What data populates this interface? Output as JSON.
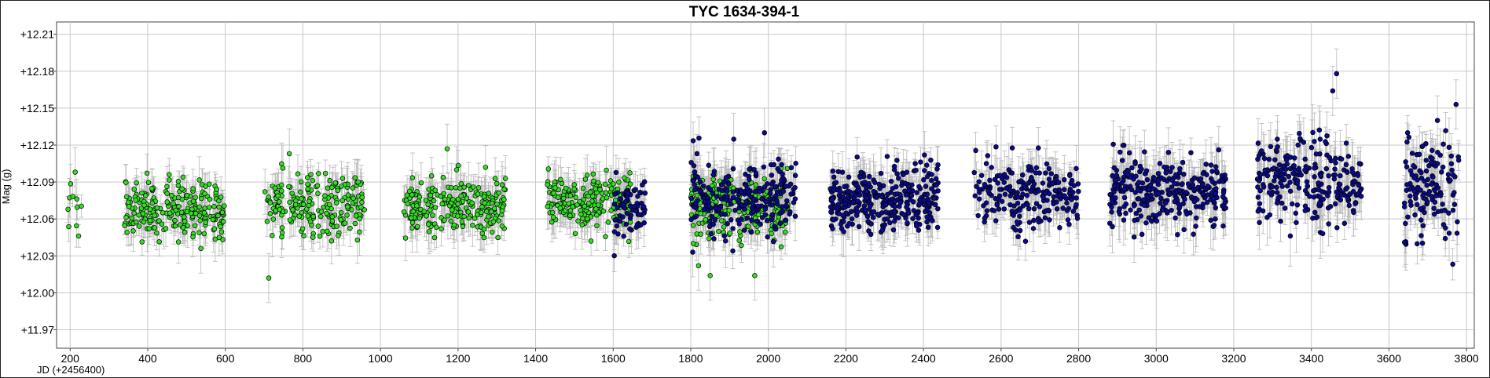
{
  "chart_data": {
    "type": "scatter",
    "title": "TYC 1634-394-1",
    "xlabel": "JD (+2456400)",
    "ylabel": "Mag (g)",
    "xlim": [
      165,
      3820
    ],
    "ylim": [
      12.22,
      11.955
    ],
    "y_inverted": true,
    "grid": true,
    "x_ticks": [
      200,
      400,
      600,
      800,
      1000,
      1200,
      1400,
      1600,
      1800,
      2000,
      2200,
      2400,
      2600,
      2800,
      3000,
      3200,
      3400,
      3600,
      3800
    ],
    "x_tick_labels": [
      "200",
      "400",
      "600",
      "800",
      "1000",
      "1200",
      "1400",
      "1600",
      "1800",
      "2000",
      "2200",
      "2400",
      "2600",
      "2800",
      "3000",
      "3200",
      "3400",
      "3600",
      "3800"
    ],
    "y_ticks": [
      11.97,
      12.0,
      12.03,
      12.06,
      12.09,
      12.12,
      12.15,
      12.18,
      12.21
    ],
    "y_tick_labels": [
      "+11.97",
      "+12.00",
      "+12.03",
      "+12.06",
      "+12.09",
      "+12.12",
      "+12.15",
      "+12.18",
      "+12.21"
    ],
    "series": [
      {
        "color": "#33dd22",
        "error_bar_color": "#b8b8b8",
        "segments": [
          {
            "x_start": 190,
            "x_end": 230,
            "count": 10,
            "mean": 12.07,
            "spread": 0.015,
            "err": 0.012
          },
          {
            "x_start": 340,
            "x_end": 600,
            "count": 230,
            "mean": 12.068,
            "spread": 0.011,
            "err": 0.013
          },
          {
            "x_start": 700,
            "x_end": 960,
            "count": 200,
            "mean": 12.07,
            "spread": 0.013,
            "err": 0.014
          },
          {
            "x_start": 1060,
            "x_end": 1325,
            "count": 230,
            "mean": 12.07,
            "spread": 0.012,
            "err": 0.014
          },
          {
            "x_start": 1430,
            "x_end": 1650,
            "count": 190,
            "mean": 12.075,
            "spread": 0.012,
            "err": 0.014
          },
          {
            "x_start": 1800,
            "x_end": 2050,
            "count": 220,
            "mean": 12.07,
            "spread": 0.013,
            "err": 0.014
          }
        ],
        "points": [
          {
            "x": 712,
            "y": 12.012
          },
          {
            "x": 537,
            "y": 12.036
          },
          {
            "x": 1850,
            "y": 12.014
          },
          {
            "x": 1965,
            "y": 12.014
          },
          {
            "x": 765,
            "y": 12.113
          },
          {
            "x": 1172,
            "y": 12.117
          },
          {
            "x": 213,
            "y": 12.098
          },
          {
            "x": 1820,
            "y": 12.022
          }
        ]
      },
      {
        "color": "#0a0a8c",
        "error_bar_color": "#b8b8b8",
        "segments": [
          {
            "x_start": 1600,
            "x_end": 1685,
            "count": 70,
            "mean": 12.07,
            "spread": 0.012,
            "err": 0.014
          },
          {
            "x_start": 1800,
            "x_end": 2075,
            "count": 230,
            "mean": 12.078,
            "spread": 0.014,
            "err": 0.015
          },
          {
            "x_start": 2160,
            "x_end": 2440,
            "count": 340,
            "mean": 12.075,
            "spread": 0.013,
            "err": 0.015
          },
          {
            "x_start": 2530,
            "x_end": 2800,
            "count": 220,
            "mean": 12.08,
            "spread": 0.015,
            "err": 0.015
          },
          {
            "x_start": 2880,
            "x_end": 3180,
            "count": 300,
            "mean": 12.082,
            "spread": 0.013,
            "err": 0.016
          },
          {
            "x_start": 3260,
            "x_end": 3530,
            "count": 240,
            "mean": 12.09,
            "spread": 0.017,
            "err": 0.017
          },
          {
            "x_start": 3640,
            "x_end": 3780,
            "count": 130,
            "mean": 12.085,
            "spread": 0.02,
            "err": 0.017
          }
        ],
        "points": [
          {
            "x": 3465,
            "y": 12.178
          },
          {
            "x": 3725,
            "y": 12.14
          },
          {
            "x": 3773,
            "y": 12.153
          },
          {
            "x": 3455,
            "y": 12.164
          },
          {
            "x": 1990,
            "y": 12.13
          },
          {
            "x": 3640,
            "y": 12.041
          },
          {
            "x": 1805,
            "y": 12.033
          }
        ]
      }
    ]
  }
}
